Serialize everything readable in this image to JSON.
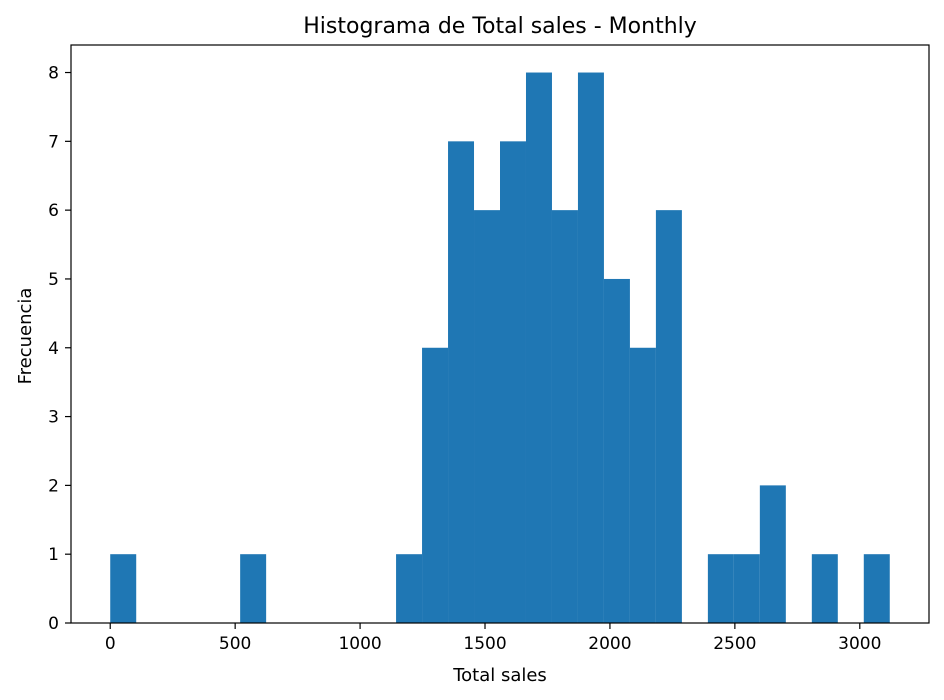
{
  "chart_data": {
    "type": "bar",
    "title": "Histograma de Total sales - Monthly",
    "xlabel": "Total sales",
    "ylabel": "Frecuencia",
    "color": "#1f77b4",
    "bins": [
      {
        "x0": 0,
        "x1": 104,
        "count": 1
      },
      {
        "x0": 104,
        "x1": 208,
        "count": 0
      },
      {
        "x0": 208,
        "x1": 312,
        "count": 0
      },
      {
        "x0": 312,
        "x1": 416,
        "count": 0
      },
      {
        "x0": 416,
        "x1": 520,
        "count": 0
      },
      {
        "x0": 520,
        "x1": 624,
        "count": 1
      },
      {
        "x0": 624,
        "x1": 728,
        "count": 0
      },
      {
        "x0": 728,
        "x1": 832,
        "count": 0
      },
      {
        "x0": 832,
        "x1": 936,
        "count": 0
      },
      {
        "x0": 936,
        "x1": 1040,
        "count": 0
      },
      {
        "x0": 1040,
        "x1": 1144,
        "count": 0
      },
      {
        "x0": 1144,
        "x1": 1248,
        "count": 1
      },
      {
        "x0": 1248,
        "x1": 1352,
        "count": 4
      },
      {
        "x0": 1352,
        "x1": 1456,
        "count": 7
      },
      {
        "x0": 1456,
        "x1": 1560,
        "count": 6
      },
      {
        "x0": 1560,
        "x1": 1664,
        "count": 7
      },
      {
        "x0": 1664,
        "x1": 1768,
        "count": 8
      },
      {
        "x0": 1768,
        "x1": 1872,
        "count": 6
      },
      {
        "x0": 1872,
        "x1": 1976,
        "count": 8
      },
      {
        "x0": 1976,
        "x1": 2080,
        "count": 5
      },
      {
        "x0": 2080,
        "x1": 2184,
        "count": 4
      },
      {
        "x0": 2184,
        "x1": 2288,
        "count": 6
      },
      {
        "x0": 2288,
        "x1": 2392,
        "count": 0
      },
      {
        "x0": 2392,
        "x1": 2496,
        "count": 1
      },
      {
        "x0": 2496,
        "x1": 2600,
        "count": 1
      },
      {
        "x0": 2600,
        "x1": 2704,
        "count": 2
      },
      {
        "x0": 2704,
        "x1": 2808,
        "count": 0
      },
      {
        "x0": 2808,
        "x1": 2912,
        "count": 1
      },
      {
        "x0": 2912,
        "x1": 3016,
        "count": 0
      },
      {
        "x0": 3016,
        "x1": 3120,
        "count": 1
      }
    ],
    "xlim": [
      -157,
      3277
    ],
    "ylim": [
      0,
      8.4
    ],
    "xticks": [
      0,
      500,
      1000,
      1500,
      2000,
      2500,
      3000
    ],
    "xtick_labels": [
      "0",
      "500",
      "1000",
      "1500",
      "2000",
      "2500",
      "3000"
    ],
    "yticks": [
      0,
      1,
      2,
      3,
      4,
      5,
      6,
      7,
      8
    ],
    "ytick_labels": [
      "0",
      "1",
      "2",
      "3",
      "4",
      "5",
      "6",
      "7",
      "8"
    ],
    "grid": false,
    "legend": "none"
  }
}
